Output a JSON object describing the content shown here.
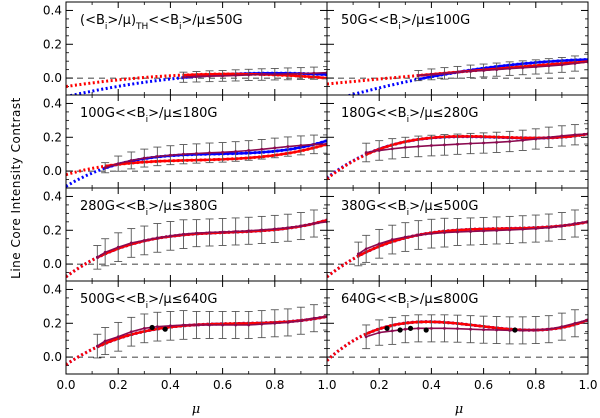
{
  "figure": {
    "ylabel": "Line Core Intensity Contrast",
    "xlabel": "μ",
    "x_ticks": [
      "0.0",
      "0.2",
      "0.4",
      "0.6",
      "0.8",
      "1.0"
    ],
    "y_ticks": [
      "0.0",
      "0.2",
      "0.4"
    ]
  },
  "colors": {
    "fit_red": "#ff0000",
    "fit_blue": "#0000ff",
    "data_mean": "#8b0a50",
    "errorbar": "#555555",
    "points": "#000000"
  },
  "chart_data": [
    {
      "type": "line",
      "title": "(<Bᵢ>/μ)TH<<Bᵢ>/μ≤50G",
      "xlim": [
        0,
        1
      ],
      "ylim": [
        -0.1,
        0.45
      ],
      "red_coef": [
        -0.05,
        0.233,
        -0.183
      ],
      "blue_coef": [
        -0.11,
        0.35,
        -0.22
      ],
      "x": [
        0.45,
        0.5,
        0.55,
        0.6,
        0.65,
        0.7,
        0.75,
        0.8,
        0.85,
        0.9,
        0.95,
        1.0
      ],
      "y": [
        0.005,
        0.008,
        0.011,
        0.013,
        0.016,
        0.019,
        0.021,
        0.023,
        0.025,
        0.027,
        0.029,
        0.032
      ],
      "err": [
        0.03,
        0.031,
        0.032,
        0.032,
        0.033,
        0.033,
        0.034,
        0.034,
        0.035,
        0.035,
        0.036,
        0.036
      ]
    },
    {
      "type": "line",
      "title": "50G<<Bᵢ>/μ≤100G",
      "xlim": [
        0,
        1
      ],
      "ylim": [
        -0.1,
        0.45
      ],
      "red_coef": [
        -0.035,
        0.15,
        -0.017
      ],
      "blue_coef": [
        -0.14,
        0.45,
        -0.2
      ],
      "x": [
        0.35,
        0.4,
        0.45,
        0.5,
        0.55,
        0.6,
        0.65,
        0.7,
        0.75,
        0.8,
        0.85,
        0.9,
        0.95,
        1.0
      ],
      "y": [
        0.015,
        0.022,
        0.028,
        0.034,
        0.04,
        0.045,
        0.05,
        0.056,
        0.061,
        0.066,
        0.072,
        0.078,
        0.086,
        0.095
      ],
      "err": [
        0.03,
        0.032,
        0.034,
        0.035,
        0.037,
        0.038,
        0.039,
        0.04,
        0.041,
        0.042,
        0.043,
        0.044,
        0.045,
        0.046
      ]
    },
    {
      "type": "line",
      "title": "100G<<Bᵢ>/μ≤180G",
      "xlim": [
        0,
        1
      ],
      "ylim": [
        -0.1,
        0.45
      ],
      "red_coef": [
        -0.0213,
        0.448,
        -0.834,
        0.567
      ],
      "blue_coef": [
        -0.09,
        0.93,
        -1.55,
        0.89
      ],
      "x": [
        0.15,
        0.2,
        0.25,
        0.3,
        0.35,
        0.4,
        0.45,
        0.5,
        0.55,
        0.6,
        0.65,
        0.7,
        0.75,
        0.8,
        0.85,
        0.9,
        0.95,
        1.0
      ],
      "y": [
        0.02,
        0.044,
        0.063,
        0.077,
        0.087,
        0.094,
        0.1,
        0.104,
        0.108,
        0.111,
        0.116,
        0.122,
        0.129,
        0.137,
        0.145,
        0.152,
        0.158,
        0.16
      ],
      "err": [
        0.03,
        0.045,
        0.05,
        0.053,
        0.055,
        0.056,
        0.057,
        0.057,
        0.058,
        0.058,
        0.058,
        0.058,
        0.058,
        0.058,
        0.057,
        0.056,
        0.055,
        0.054
      ]
    },
    {
      "type": "line",
      "title": "180G<<Bᵢ>/μ≤280G",
      "xlim": [
        0,
        1
      ],
      "ylim": [
        -0.1,
        0.45
      ],
      "red_coef": [
        -0.045,
        1.217,
        -1.918,
        0.966
      ],
      "blue_coef": [
        -0.04,
        1.19,
        -1.88,
        0.95
      ],
      "x": [
        0.15,
        0.2,
        0.25,
        0.3,
        0.35,
        0.4,
        0.45,
        0.5,
        0.55,
        0.6,
        0.65,
        0.7,
        0.75,
        0.8,
        0.85,
        0.9,
        0.95,
        1.0
      ],
      "y": [
        0.11,
        0.122,
        0.132,
        0.14,
        0.146,
        0.151,
        0.155,
        0.159,
        0.163,
        0.166,
        0.17,
        0.175,
        0.182,
        0.19,
        0.2,
        0.208,
        0.215,
        0.22
      ],
      "err": [
        0.055,
        0.058,
        0.06,
        0.06,
        0.061,
        0.061,
        0.061,
        0.06,
        0.06,
        0.06,
        0.06,
        0.06,
        0.06,
        0.06,
        0.06,
        0.06,
        0.06,
        0.06
      ]
    },
    {
      "type": "line",
      "title": "280G<<Bᵢ>/μ≤380G",
      "xlim": [
        0,
        1
      ],
      "ylim": [
        -0.1,
        0.45
      ],
      "red_coef": [
        -0.075,
        1.146,
        -1.742,
        0.931
      ],
      "blue_coef": [
        -0.075,
        1.146,
        -1.742,
        0.931
      ],
      "x": [
        0.12,
        0.15,
        0.2,
        0.25,
        0.3,
        0.35,
        0.4,
        0.45,
        0.5,
        0.55,
        0.6,
        0.65,
        0.7,
        0.75,
        0.8,
        0.85,
        0.9,
        0.95,
        1.0
      ],
      "y": [
        0.04,
        0.07,
        0.1,
        0.125,
        0.14,
        0.155,
        0.167,
        0.177,
        0.183,
        0.187,
        0.19,
        0.193,
        0.197,
        0.202,
        0.208,
        0.215,
        0.225,
        0.24,
        0.25
      ],
      "err": [
        0.07,
        0.08,
        0.085,
        0.085,
        0.085,
        0.085,
        0.085,
        0.085,
        0.08,
        0.08,
        0.08,
        0.08,
        0.08,
        0.08,
        0.08,
        0.08,
        0.08,
        0.08,
        0.08
      ]
    },
    {
      "type": "line",
      "title": "380G<<Bᵢ>/μ≤500G",
      "xlim": [
        0,
        1
      ],
      "ylim": [
        -0.1,
        0.45
      ],
      "red_coef": [
        -0.075,
        1.219,
        -1.776,
        0.882
      ],
      "blue_coef": [
        -0.075,
        1.219,
        -1.776,
        0.882
      ],
      "x": [
        0.12,
        0.15,
        0.2,
        0.25,
        0.3,
        0.35,
        0.4,
        0.45,
        0.5,
        0.55,
        0.6,
        0.65,
        0.7,
        0.75,
        0.8,
        0.85,
        0.9,
        0.95,
        1.0
      ],
      "y": [
        0.06,
        0.09,
        0.12,
        0.145,
        0.16,
        0.172,
        0.18,
        0.186,
        0.19,
        0.193,
        0.196,
        0.199,
        0.202,
        0.206,
        0.21,
        0.216,
        0.225,
        0.24,
        0.25
      ],
      "err": [
        0.07,
        0.08,
        0.085,
        0.085,
        0.085,
        0.085,
        0.085,
        0.085,
        0.08,
        0.08,
        0.08,
        0.08,
        0.08,
        0.08,
        0.08,
        0.08,
        0.08,
        0.08,
        0.08
      ]
    },
    {
      "type": "line",
      "title": "500G<<Bᵢ>/μ≤640G",
      "xlim": [
        0,
        1
      ],
      "ylim": [
        -0.1,
        0.45
      ],
      "red_coef": [
        -0.045,
        1.053,
        -1.558,
        0.79
      ],
      "blue_coef": [
        -0.045,
        1.053,
        -1.558,
        0.79
      ],
      "x": [
        0.12,
        0.15,
        0.2,
        0.25,
        0.3,
        0.35,
        0.4,
        0.45,
        0.5,
        0.55,
        0.6,
        0.65,
        0.7,
        0.75,
        0.8,
        0.85,
        0.9,
        0.95,
        1.0
      ],
      "y": [
        0.065,
        0.095,
        0.12,
        0.15,
        0.17,
        0.18,
        0.185,
        0.19,
        0.19,
        0.19,
        0.19,
        0.19,
        0.19,
        0.195,
        0.2,
        0.205,
        0.215,
        0.23,
        0.24
      ],
      "err": [
        0.07,
        0.08,
        0.085,
        0.085,
        0.085,
        0.085,
        0.085,
        0.085,
        0.08,
        0.08,
        0.08,
        0.08,
        0.08,
        0.08,
        0.08,
        0.08,
        0.08,
        0.08,
        0.08
      ],
      "points_x": [
        0.33,
        0.38
      ],
      "points_y": [
        0.175,
        0.165
      ]
    },
    {
      "type": "line",
      "title": "640G<<Bᵢ>/μ≤800G",
      "xlim": [
        0,
        1
      ],
      "ylim": [
        -0.1,
        0.45
      ],
      "red_coef": [
        -0.02,
        1.42,
        -2.75,
        1.57
      ],
      "blue_coef": [
        -0.02,
        1.42,
        -2.75,
        1.57
      ],
      "x": [
        0.15,
        0.2,
        0.25,
        0.3,
        0.35,
        0.4,
        0.45,
        0.5,
        0.55,
        0.6,
        0.65,
        0.7,
        0.75,
        0.8,
        0.85,
        0.9,
        0.95,
        1.0
      ],
      "y": [
        0.12,
        0.145,
        0.155,
        0.165,
        0.17,
        0.17,
        0.17,
        0.168,
        0.165,
        0.162,
        0.16,
        0.158,
        0.158,
        0.16,
        0.165,
        0.18,
        0.2,
        0.22
      ],
      "err": [
        0.07,
        0.075,
        0.08,
        0.08,
        0.08,
        0.08,
        0.08,
        0.08,
        0.08,
        0.08,
        0.08,
        0.08,
        0.08,
        0.08,
        0.08,
        0.08,
        0.08,
        0.08
      ],
      "points_x": [
        0.23,
        0.28,
        0.32,
        0.38,
        0.72
      ],
      "points_y": [
        0.17,
        0.16,
        0.17,
        0.16,
        0.16
      ]
    }
  ]
}
